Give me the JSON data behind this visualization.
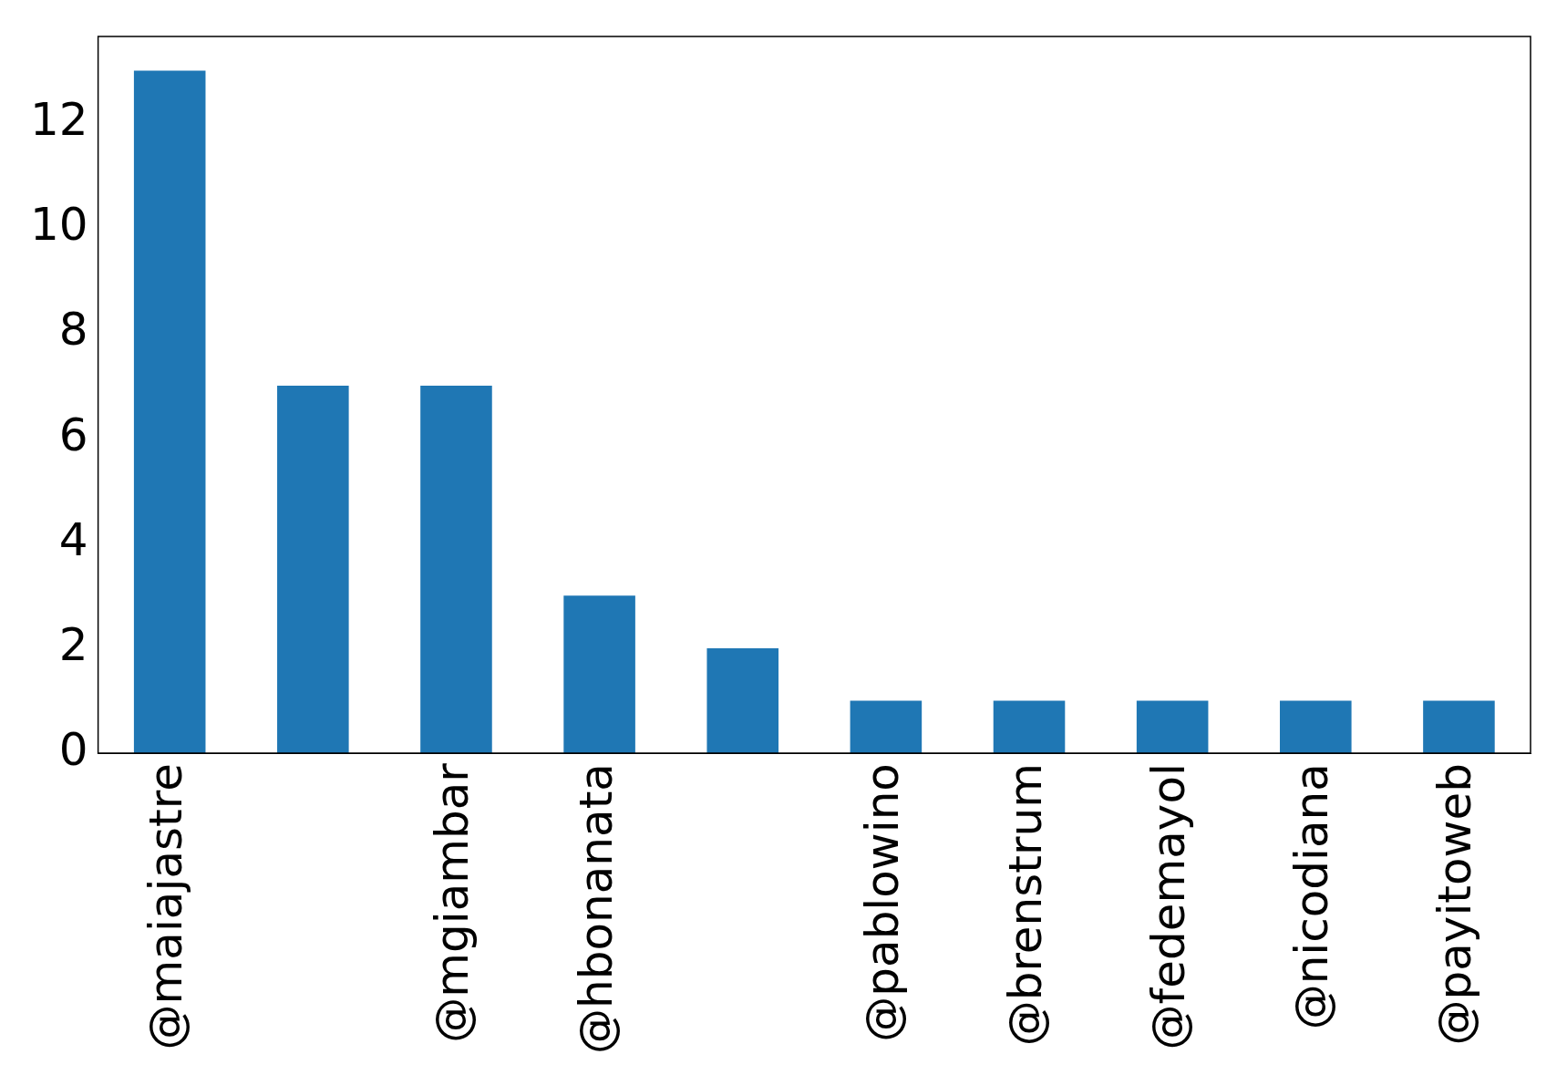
{
  "chart_data": {
    "type": "bar",
    "categories": [
      "@maiajastre",
      null,
      "@mgiambar",
      "@hbonanata",
      null,
      "@pablowino",
      "@brenstrum",
      "@fedemayol",
      "@nicodiana",
      "@payitoweb"
    ],
    "values": [
      13,
      7,
      7,
      3,
      2,
      1,
      1,
      1,
      1,
      1
    ],
    "color": "#1f77b4",
    "ylim": [
      0,
      13.65
    ],
    "yticks": [
      0,
      2,
      4,
      6,
      8,
      10,
      12
    ],
    "grid": false,
    "legend": false
  }
}
